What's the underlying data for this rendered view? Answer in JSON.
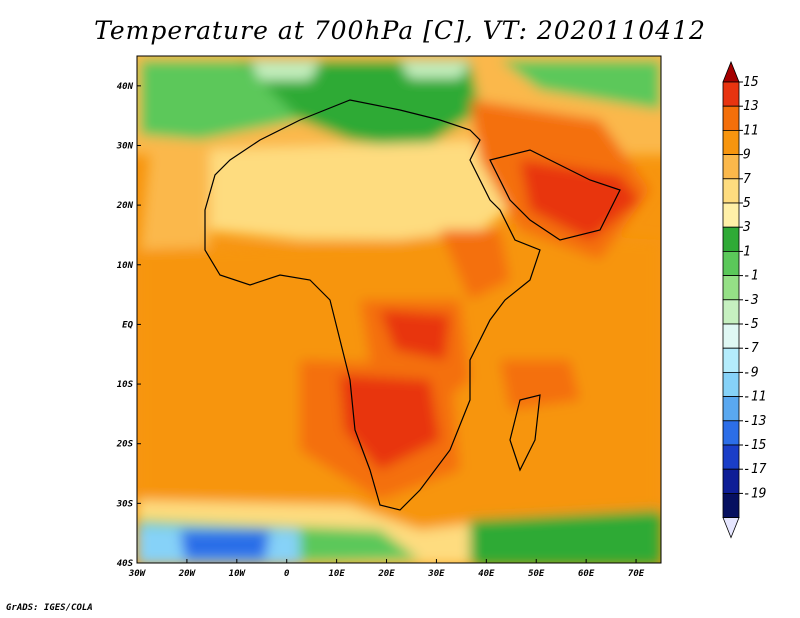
{
  "title": "Temperature at 700hPa [C], VT: 2020110412",
  "credit": "GrADS: IGES/COLA",
  "map": {
    "lon_range": [
      -30,
      75
    ],
    "lat_range": [
      -40,
      45
    ],
    "lon_ticks": [
      "30W",
      "20W",
      "10W",
      "0",
      "10E",
      "20E",
      "30E",
      "40E",
      "50E",
      "60E",
      "70E"
    ],
    "lat_ticks": [
      "40N",
      "30N",
      "20N",
      "10N",
      "EQ",
      "10S",
      "20S",
      "30S",
      "40S"
    ],
    "regions": [
      {
        "name": "mediterranean-cool-band",
        "temp": 1
      },
      {
        "name": "north-atlantic-warm-band",
        "temp": 5
      },
      {
        "name": "sahara-warm-region",
        "temp": 7
      },
      {
        "name": "tropical-atlantic-band",
        "temp": 9
      },
      {
        "name": "arabia-hot-core",
        "temp": 13
      },
      {
        "name": "central-africa-hot-core",
        "temp": 13
      },
      {
        "name": "southern-africa-hot-core",
        "temp": 13
      },
      {
        "name": "southern-ocean-cool-band",
        "temp": 1
      },
      {
        "name": "south-atlantic-cold-pool",
        "temp": -13
      }
    ]
  },
  "colorbar": {
    "labels": [
      "15",
      "13",
      "11",
      "9",
      "7",
      "5",
      "3",
      "1",
      "-1",
      "-3",
      "-5",
      "-7",
      "-9",
      "-11",
      "-13",
      "-15",
      "-17",
      "-19"
    ],
    "colors": [
      "#a50000",
      "#e83410",
      "#f46f0a",
      "#f7950e",
      "#fbb84b",
      "#fedc7f",
      "#fff0a8",
      "#2faa36",
      "#5bc85a",
      "#95e086",
      "#c6f0c0",
      "#e0f8f4",
      "#b4ecfc",
      "#86d2f8",
      "#5aa8f0",
      "#2c6ee8",
      "#1a3ec8",
      "#0e1e96",
      "#061060",
      "#e6e6ff"
    ]
  }
}
